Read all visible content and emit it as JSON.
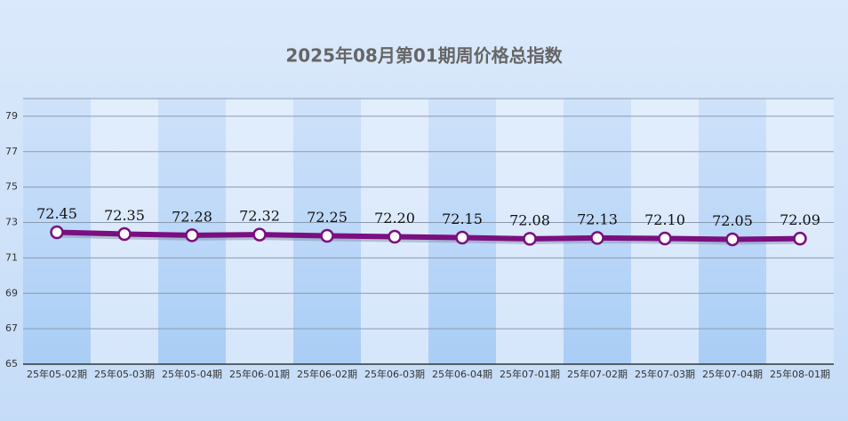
{
  "chart_data": {
    "type": "line",
    "title": "2025年08月第01期周价格总指数",
    "categories": [
      "25年05-02期",
      "25年05-03期",
      "25年05-04期",
      "25年06-01期",
      "25年06-02期",
      "25年06-03期",
      "25年06-04期",
      "25年07-01期",
      "25年07-02期",
      "25年07-03期",
      "25年07-04期",
      "25年08-01期"
    ],
    "values": [
      72.45,
      72.35,
      72.28,
      72.32,
      72.25,
      72.2,
      72.15,
      72.08,
      72.13,
      72.1,
      72.05,
      72.09
    ],
    "value_labels": [
      "72.45",
      "72.35",
      "72.28",
      "72.32",
      "72.25",
      "72.20",
      "72.15",
      "72.08",
      "72.13",
      "72.10",
      "72.05",
      "72.09"
    ],
    "color": "#7a0f80",
    "ylim": [
      65,
      80
    ],
    "yticks": [
      65,
      67,
      69,
      71,
      73,
      75,
      77,
      79
    ],
    "grid": true
  }
}
